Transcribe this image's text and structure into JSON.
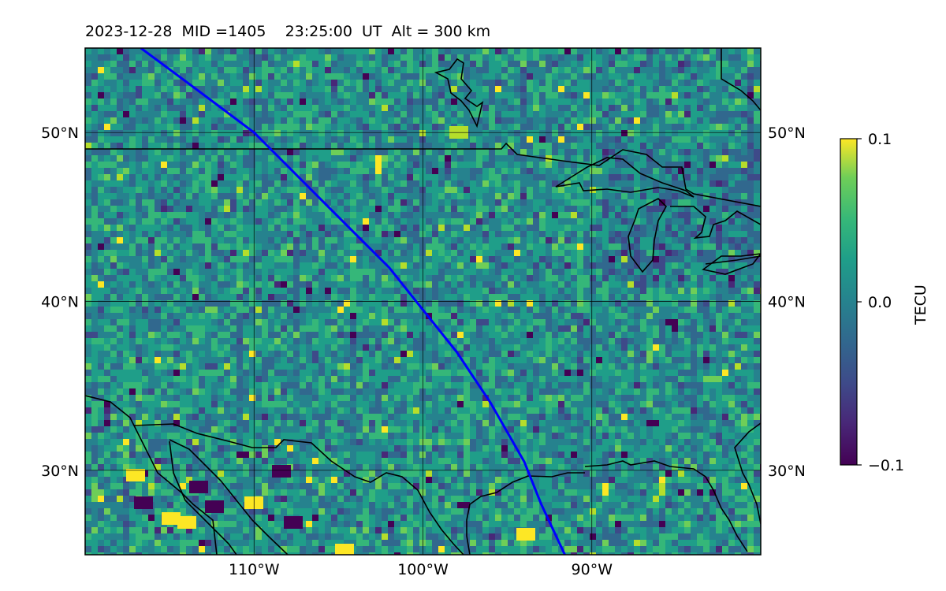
{
  "title": "2023-12-28  MID =1405    23:25:00  UT  Alt = 300 km",
  "map": {
    "projection": "equirectangular",
    "lon_range": [
      -120,
      -80
    ],
    "lat_range": [
      25,
      55
    ],
    "lon_ticks": [
      {
        "value": -110,
        "label": "110°W"
      },
      {
        "value": -100,
        "label": "100°W"
      },
      {
        "value": -90,
        "label": "90°W"
      }
    ],
    "lat_ticks": [
      {
        "value": 50,
        "label": "50°N"
      },
      {
        "value": 40,
        "label": "40°N"
      },
      {
        "value": 30,
        "label": "30°N"
      }
    ],
    "track_color": "#0000ff",
    "track": [
      [
        -116.7,
        55
      ],
      [
        -114,
        53
      ],
      [
        -112,
        51.5
      ],
      [
        -110,
        50
      ],
      [
        -108,
        48
      ],
      [
        -106,
        46
      ],
      [
        -104,
        44
      ],
      [
        -102,
        42
      ],
      [
        -100,
        39.5
      ],
      [
        -98,
        37
      ],
      [
        -96,
        34
      ],
      [
        -94,
        30.5
      ],
      [
        -93,
        28
      ],
      [
        -91.6,
        25
      ]
    ],
    "colormap": "viridis"
  },
  "colorbar": {
    "label": "TECU",
    "min": -0.1,
    "max": 0.1,
    "ticks": [
      {
        "value": 0.1,
        "label": "0.1"
      },
      {
        "value": 0.0,
        "label": "0.0"
      },
      {
        "value": -0.1,
        "label": "−0.1"
      }
    ]
  }
}
